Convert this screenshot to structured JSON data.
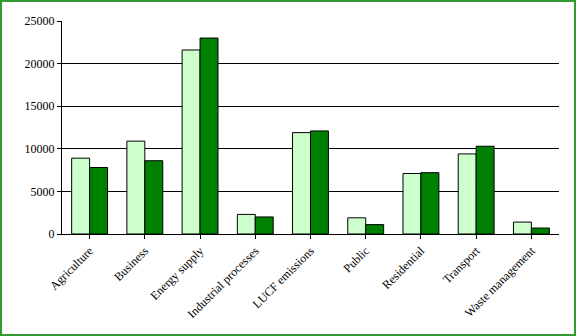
{
  "chart_data": {
    "type": "bar",
    "categories": [
      "Agriculture",
      "Business",
      "Energy supply",
      "Industrial processes",
      "LUCF emissions",
      "Public",
      "Residential",
      "Transport",
      "Waste management"
    ],
    "series": [
      {
        "color": "#ccffcc",
        "values": [
          8900,
          10900,
          21600,
          2300,
          11900,
          1900,
          7100,
          9400,
          1400
        ]
      },
      {
        "color": "#008000",
        "values": [
          7800,
          8600,
          23000,
          2000,
          12100,
          1100,
          7200,
          10300,
          700
        ]
      }
    ],
    "ylim": [
      0,
      25000
    ],
    "yticks": [
      0,
      5000,
      10000,
      15000,
      20000,
      25000
    ],
    "grid": true
  }
}
